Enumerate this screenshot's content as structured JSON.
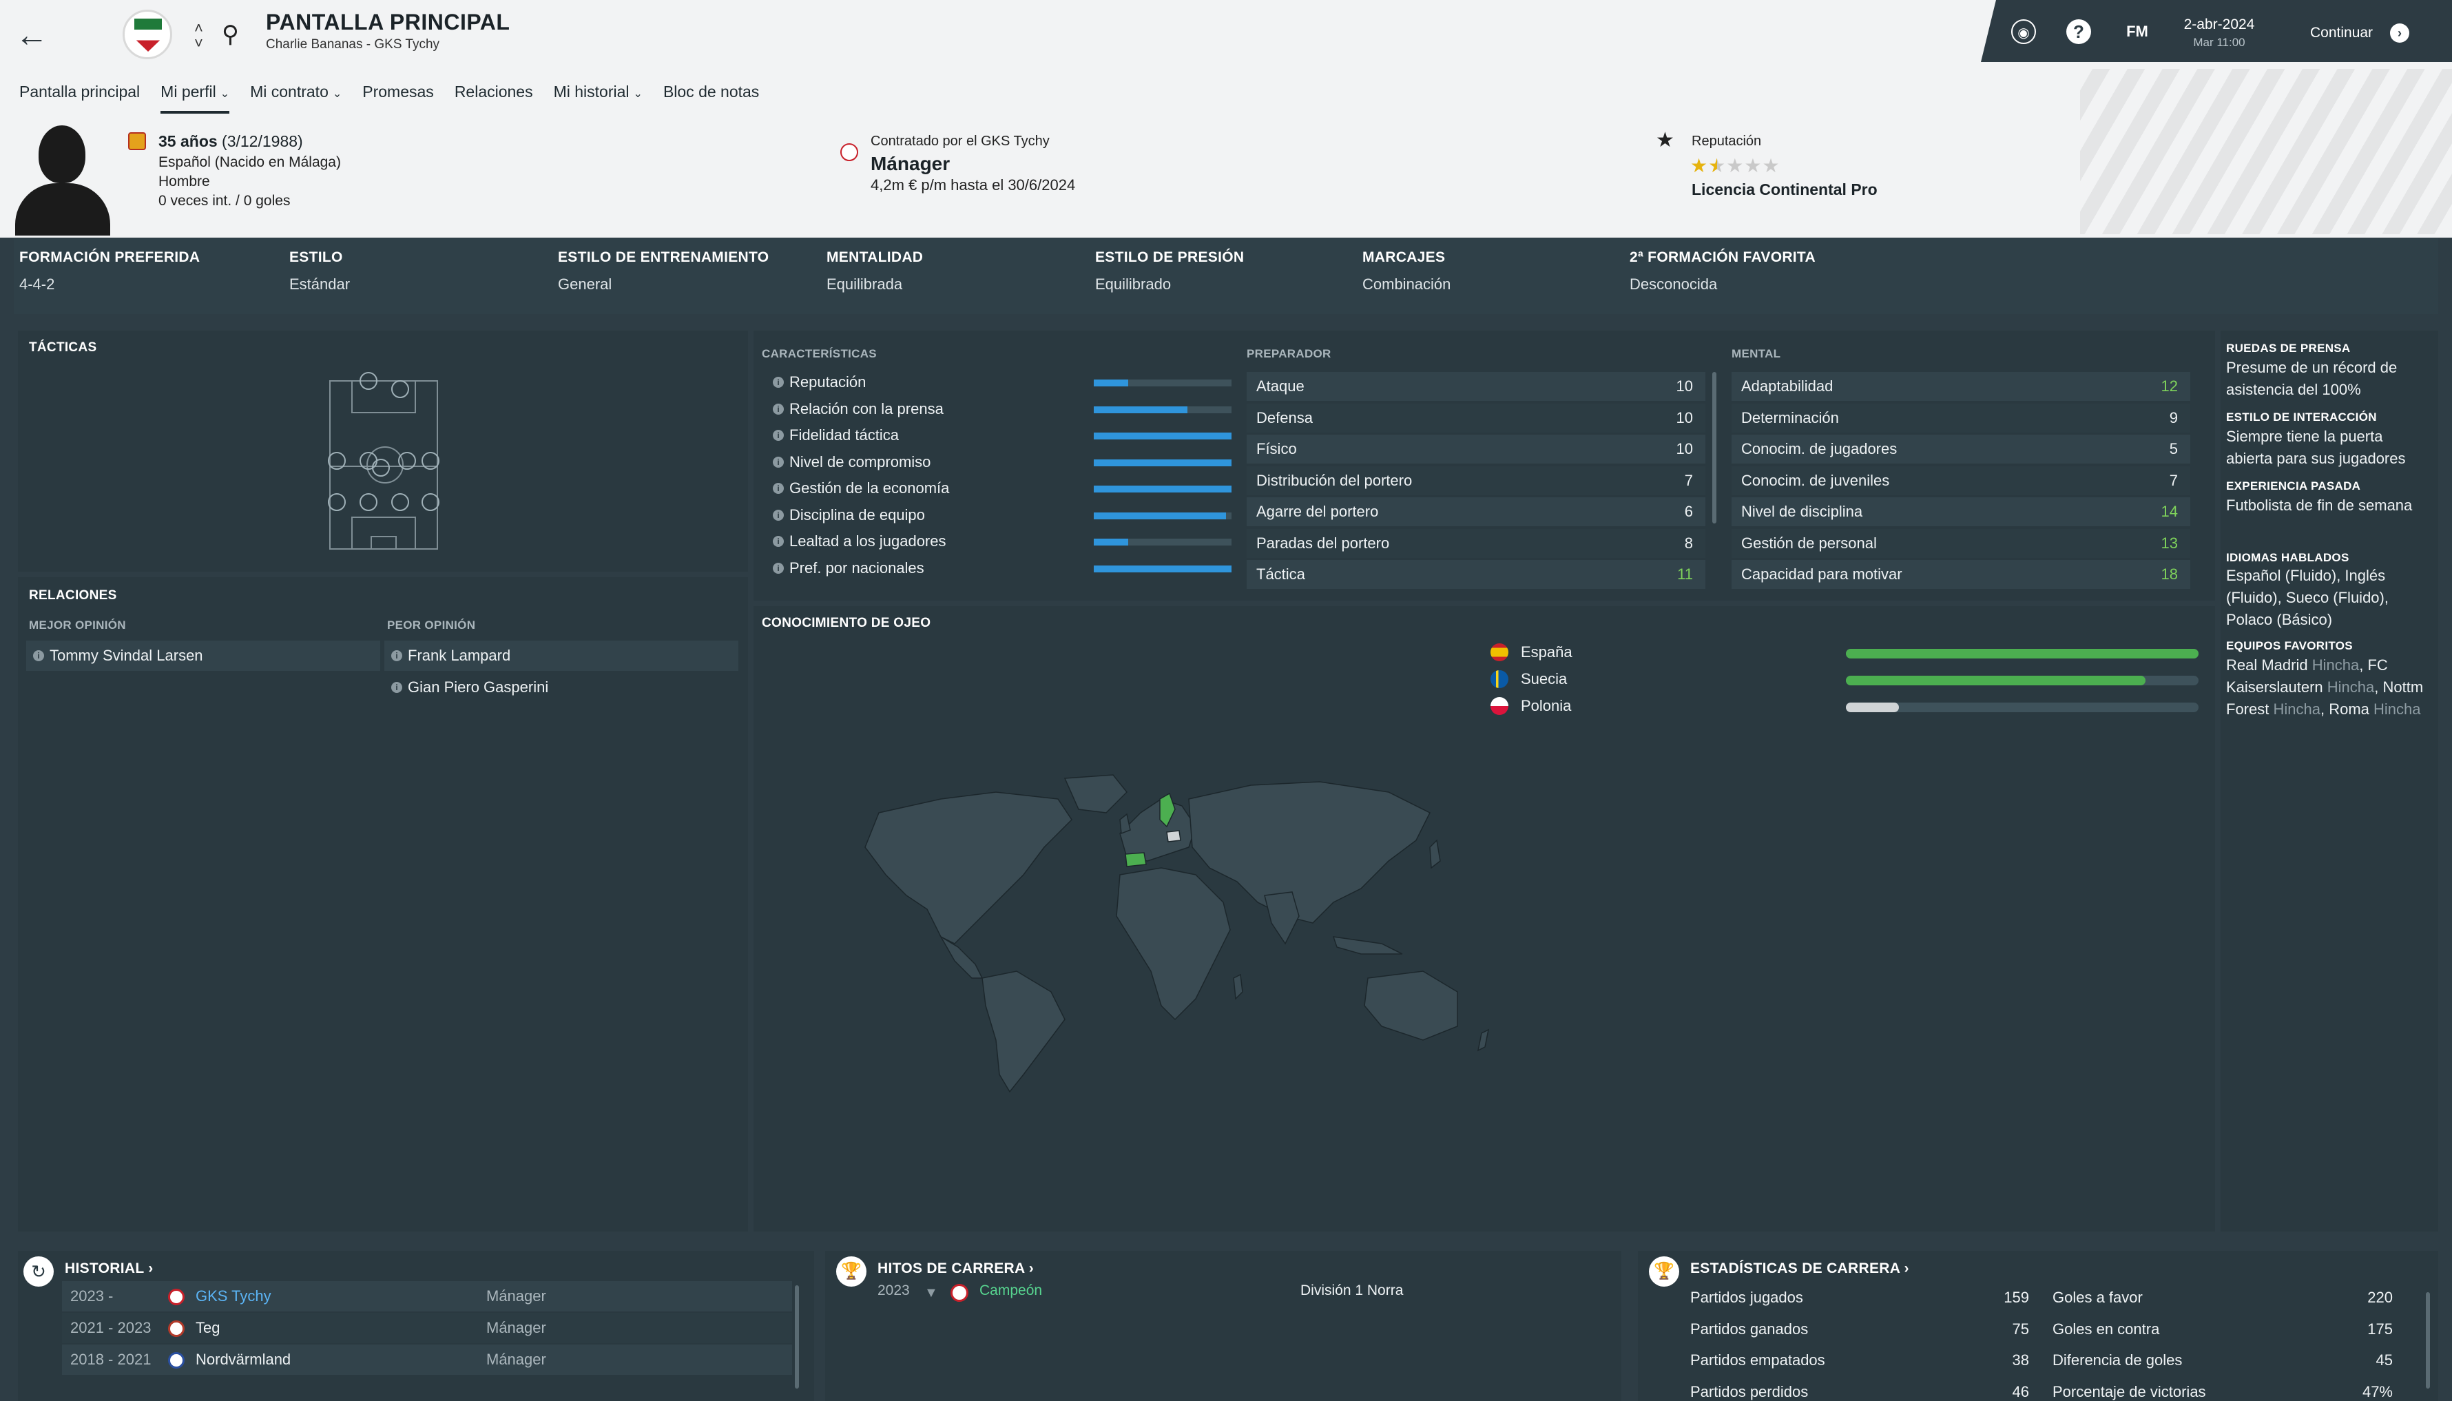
{
  "header": {
    "title": "PANTALLA PRINCIPAL",
    "subtitle": "Charlie Bananas - GKS Tychy",
    "date": "2-abr-2024",
    "time": "Mar 11:00",
    "continue_label": "Continuar",
    "fm_label": "FM",
    "help_label": "?"
  },
  "nav_tabs": [
    {
      "label": "Pantalla principal",
      "dropdown": false,
      "active": false
    },
    {
      "label": "Mi perfil",
      "dropdown": true,
      "active": true
    },
    {
      "label": "Mi contrato",
      "dropdown": true,
      "active": false
    },
    {
      "label": "Promesas",
      "dropdown": false,
      "active": false
    },
    {
      "label": "Relaciones",
      "dropdown": false,
      "active": false
    },
    {
      "label": "Mi historial",
      "dropdown": true,
      "active": false
    },
    {
      "label": "Bloc de notas",
      "dropdown": false,
      "active": false
    }
  ],
  "profile": {
    "age": "35 años",
    "birth": "(3/12/1988)",
    "nationality": "Español (Nacido en Málaga)",
    "gender": "Hombre",
    "caps": "0 veces int. / 0 goles"
  },
  "contract": {
    "label": "Contratado por el GKS Tychy",
    "role": "Mánager",
    "salary": "4,2m € p/m hasta el 30/6/2024"
  },
  "reputation": {
    "label": "Reputación",
    "stars": 1.5,
    "licence": "Licencia Continental Pro"
  },
  "tactics_strip": [
    {
      "label": "FORMACIÓN PREFERIDA",
      "value": "4-4-2"
    },
    {
      "label": "ESTILO",
      "value": "Estándar"
    },
    {
      "label": "ESTILO DE ENTRENAMIENTO",
      "value": "General"
    },
    {
      "label": "MENTALIDAD",
      "value": "Equilibrada"
    },
    {
      "label": "ESTILO DE PRESIÓN",
      "value": "Equilibrado"
    },
    {
      "label": "MARCAJES",
      "value": "Combinación"
    },
    {
      "label": "2ª FORMACIÓN FAVORITA",
      "value": "Desconocida"
    }
  ],
  "tactics_title": "TÁCTICAS",
  "relations": {
    "title": "RELACIONES",
    "best_label": "MEJOR OPINIÓN",
    "worst_label": "PEOR OPINIÓN",
    "best": [
      "Tommy Svindal Larsen"
    ],
    "worst": [
      "Frank Lampard",
      "Gian Piero Gasperini"
    ]
  },
  "characteristics": {
    "title": "CARACTERÍSTICAS",
    "items": [
      {
        "label": "Reputación",
        "value": 0.25
      },
      {
        "label": "Relación con la prensa",
        "value": 0.68
      },
      {
        "label": "Fidelidad táctica",
        "value": 1.0
      },
      {
        "label": "Nivel de compromiso",
        "value": 1.0
      },
      {
        "label": "Gestión de la economía",
        "value": 1.0
      },
      {
        "label": "Disciplina de equipo",
        "value": 0.96
      },
      {
        "label": "Lealtad a los jugadores",
        "value": 0.25
      },
      {
        "label": "Pref. por nacionales",
        "value": 1.0
      }
    ]
  },
  "coach": {
    "title": "PREPARADOR",
    "items": [
      {
        "label": "Ataque",
        "value": "10",
        "green": false
      },
      {
        "label": "Defensa",
        "value": "10",
        "green": false
      },
      {
        "label": "Físico",
        "value": "10",
        "green": false
      },
      {
        "label": "Distribución del portero",
        "value": "7",
        "green": false
      },
      {
        "label": "Agarre del portero",
        "value": "6",
        "green": false
      },
      {
        "label": "Paradas del portero",
        "value": "8",
        "green": false
      },
      {
        "label": "Táctica",
        "value": "11",
        "green": true
      }
    ]
  },
  "mental": {
    "title": "MENTAL",
    "items": [
      {
        "label": "Adaptabilidad",
        "value": "12",
        "green": true
      },
      {
        "label": "Determinación",
        "value": "9",
        "green": false
      },
      {
        "label": "Conocim. de jugadores",
        "value": "5",
        "green": false
      },
      {
        "label": "Conocim. de juveniles",
        "value": "7",
        "green": false
      },
      {
        "label": "Nivel de disciplina",
        "value": "14",
        "green": true
      },
      {
        "label": "Gestión de personal",
        "value": "13",
        "green": true
      },
      {
        "label": "Capacidad para motivar",
        "value": "18",
        "green": true
      }
    ]
  },
  "scouting": {
    "title": "CONOCIMIENTO DE OJEO",
    "countries": [
      {
        "name": "España",
        "value": 1.0,
        "color": "#4caf50"
      },
      {
        "name": "Suecia",
        "value": 0.85,
        "color": "#4caf50"
      },
      {
        "name": "Polonia",
        "value": 0.15,
        "color": "#d0d4d6"
      }
    ]
  },
  "right_column": {
    "press_title": "RUEDAS DE PRENSA",
    "press_text": "Presume de un récord de asistencia del 100%",
    "interaction_title": "ESTILO DE INTERACCIÓN",
    "interaction_text": "Siempre tiene la puerta abierta para sus jugadores",
    "past_title": "EXPERIENCIA PASADA",
    "past_text": "Futbolista de fin de semana",
    "languages_title": "IDIOMAS HABLADOS",
    "languages_text": "Español (Fluido), Inglés (Fluido), Sueco (Fluido), Polaco (Básico)",
    "teams_title": "EQUIPOS FAVORITOS",
    "teams": [
      {
        "club": "Real Madrid",
        "tag": "Hincha",
        "sep": ", "
      },
      {
        "club": "FC Kaiserslautern",
        "tag": "Hincha",
        "sep": ", "
      },
      {
        "club": "Nottm Forest",
        "tag": "Hincha",
        "sep": ", "
      },
      {
        "club": "Roma",
        "tag": "Hincha",
        "sep": ""
      }
    ]
  },
  "history": {
    "title": "HISTORIAL",
    "rows": [
      {
        "years": "2023 -",
        "club": "GKS Tychy",
        "role": "Mánager",
        "link": true,
        "badge": "#c8202a"
      },
      {
        "years": "2021 - 2023",
        "club": "Teg",
        "role": "Mánager",
        "link": false,
        "badge": "#b33a2a"
      },
      {
        "years": "2018 - 2021",
        "club": "Nordvärmland",
        "role": "Mánager",
        "link": false,
        "badge": "#2a4fa0"
      }
    ]
  },
  "milestones": {
    "title": "HITOS DE CARRERA",
    "year": "2023",
    "result": "Campeón",
    "competition": "División 1  Norra"
  },
  "career_stats": {
    "title": "ESTADÍSTICAS DE CARRERA",
    "left": [
      {
        "label": "Partidos jugados",
        "value": "159"
      },
      {
        "label": "Partidos ganados",
        "value": "75"
      },
      {
        "label": "Partidos empatados",
        "value": "38"
      },
      {
        "label": "Partidos perdidos",
        "value": "46"
      }
    ],
    "right": [
      {
        "label": "Goles a favor",
        "value": "220"
      },
      {
        "label": "Goles en contra",
        "value": "175"
      },
      {
        "label": "Diferencia de goles",
        "value": "45"
      },
      {
        "label": "Porcentaje de victorias",
        "value": "47%"
      }
    ]
  }
}
